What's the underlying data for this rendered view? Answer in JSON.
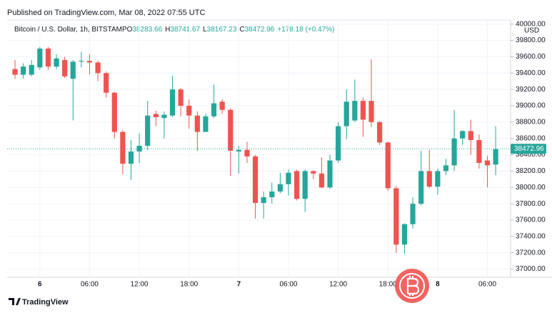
{
  "published": "Published on TradingView.com, Mar 08, 2022 07:55 UTC",
  "footer": "TradingView",
  "chart_data": {
    "type": "candlestick",
    "title": "Bitcoin / U.S. Dollar, 1h, BITSTAMP",
    "ohlc_legend": [
      {
        "label": "O",
        "value": "38283.66"
      },
      {
        "label": "H",
        "value": "38741.67"
      },
      {
        "label": "L",
        "value": "38167.23"
      },
      {
        "label": "C",
        "value": "38472.96"
      }
    ],
    "change": "+178.18 (+0.47%)",
    "currency": "USD",
    "last_price": 38472.96,
    "up_color": "#26a69a",
    "down_color": "#ef5350",
    "grid": true,
    "xlim": [
      -0.95,
      59.8
    ],
    "xticks": [
      {
        "value": 3,
        "label": "6"
      },
      {
        "value": 9,
        "label": "06:00"
      },
      {
        "value": 15,
        "label": "12:00"
      },
      {
        "value": 21,
        "label": "18:00"
      },
      {
        "value": 27,
        "label": "7"
      },
      {
        "value": 33,
        "label": "06:00"
      },
      {
        "value": 39,
        "label": "12:00"
      },
      {
        "value": 45,
        "label": "18:00"
      },
      {
        "value": 51,
        "label": "8"
      },
      {
        "value": 57,
        "label": "06:00"
      }
    ],
    "ylim": [
      36900,
      40050
    ],
    "yticks": [
      {
        "value": 37000,
        "label": "37000.00"
      },
      {
        "value": 37200,
        "label": "37200.00"
      },
      {
        "value": 37400,
        "label": "37400.00"
      },
      {
        "value": 37600,
        "label": "37600.00"
      },
      {
        "value": 37800,
        "label": "37800.00"
      },
      {
        "value": 38000,
        "label": "38000.00"
      },
      {
        "value": 38200,
        "label": "38200.00"
      },
      {
        "value": 38400,
        "label": "38400.00"
      },
      {
        "value": 38600,
        "label": "38600.00"
      },
      {
        "value": 38800,
        "label": "38800.00"
      },
      {
        "value": 39000,
        "label": "39000.00"
      },
      {
        "value": 39200,
        "label": "39200.00"
      },
      {
        "value": 39400,
        "label": "39400.00"
      },
      {
        "value": 39600,
        "label": "39600.00"
      },
      {
        "value": 39800,
        "label": "39800.00"
      },
      {
        "value": 40000,
        "label": "40000.00"
      }
    ],
    "open": [
      39450,
      39380,
      39380,
      39470,
      39700,
      39480,
      39560,
      39330,
      39540,
      39550,
      39530,
      39400,
      39160,
      38680,
      38290,
      38440,
      38510,
      38900,
      38850,
      38880,
      39200,
      39000,
      38880,
      38680,
      38870,
      39050,
      38950,
      38440,
      38460,
      38380,
      37810,
      37880,
      37950,
      38040,
      38200,
      37860,
      38200,
      38170,
      38000,
      38330,
      38750,
      38820,
      39060,
      39060,
      38800,
      38550,
      37990,
      37300,
      37550,
      37800,
      38200,
      38010,
      38200,
      38270,
      38600,
      38690,
      38580,
      38330,
      38280
    ],
    "high": [
      39560,
      39520,
      39560,
      39720,
      39720,
      39630,
      39600,
      39560,
      39660,
      39630,
      39550,
      39420,
      39170,
      38700,
      38580,
      38660,
      39060,
      38940,
      38930,
      39370,
      39220,
      39080,
      38930,
      38900,
      39260,
      39080,
      38970,
      38510,
      38560,
      38400,
      37950,
      38060,
      38180,
      38220,
      38220,
      38220,
      38210,
      38370,
      38400,
      38800,
      39200,
      39320,
      39100,
      39570,
      38810,
      38560,
      38020,
      37560,
      37880,
      38450,
      38460,
      38230,
      38350,
      38950,
      38700,
      38830,
      38650,
      38390,
      38750
    ],
    "low": [
      39330,
      39330,
      39360,
      39440,
      39440,
      39450,
      39340,
      38820,
      39470,
      39380,
      39300,
      39100,
      38600,
      38160,
      38090,
      38300,
      38460,
      38750,
      38600,
      38860,
      38870,
      38720,
      38450,
      38680,
      38850,
      38900,
      38140,
      38170,
      38300,
      37620,
      37620,
      37800,
      37930,
      37900,
      37840,
      37700,
      38100,
      37990,
      37980,
      38300,
      38590,
      38800,
      38620,
      38740,
      38520,
      37960,
      37200,
      37190,
      37500,
      37780,
      37990,
      37910,
      38150,
      38200,
      38520,
      38400,
      38230,
      38000,
      38150
    ],
    "close": [
      39380,
      39480,
      39500,
      39700,
      39480,
      39580,
      39360,
      39540,
      39550,
      39530,
      39400,
      39160,
      38680,
      38290,
      38440,
      38510,
      38880,
      38860,
      38890,
      39200,
      39000,
      38880,
      38680,
      38870,
      39030,
      38950,
      38450,
      38460,
      38380,
      37810,
      37880,
      37950,
      38040,
      38180,
      37860,
      38200,
      38170,
      38000,
      38330,
      38750,
      39050,
      39060,
      38830,
      38800,
      38550,
      37990,
      37300,
      37550,
      37800,
      38200,
      38010,
      38200,
      38270,
      38600,
      38690,
      38580,
      38300,
      38270,
      38470
    ]
  }
}
